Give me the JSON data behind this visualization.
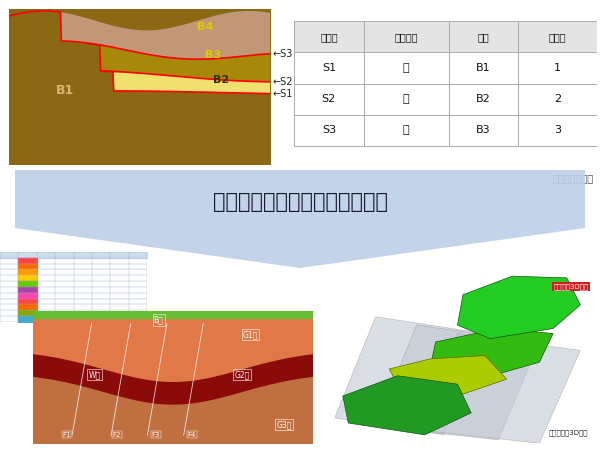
{
  "bg_color": "#ffffff",
  "arrow_text": "複雑な地盤モデルを自在に表現",
  "table_headers": [
    "境界面",
    "定義領域",
    "地質",
    "優先順"
  ],
  "table_rows": [
    [
      "S1",
      "下",
      "B1",
      "1"
    ],
    [
      "S2",
      "下",
      "B2",
      "2"
    ],
    [
      "S3",
      "下",
      "B3",
      "3"
    ]
  ],
  "table_caption": "境界面テーブル",
  "geo_color_B1": "#8B6914",
  "geo_color_B2": "#F0E070",
  "geo_color_B3": "#A8880A",
  "geo_color_B4": "#C09878",
  "geo_color_line": "#FF0000",
  "arrow_bg": "#BDD0E8",
  "cs_color_green": "#88CC44",
  "cs_color_orange": "#E8945A",
  "cs_color_darkred": "#8B1010",
  "cs_color_brown": "#C07850",
  "cs_border": "#44CC44"
}
